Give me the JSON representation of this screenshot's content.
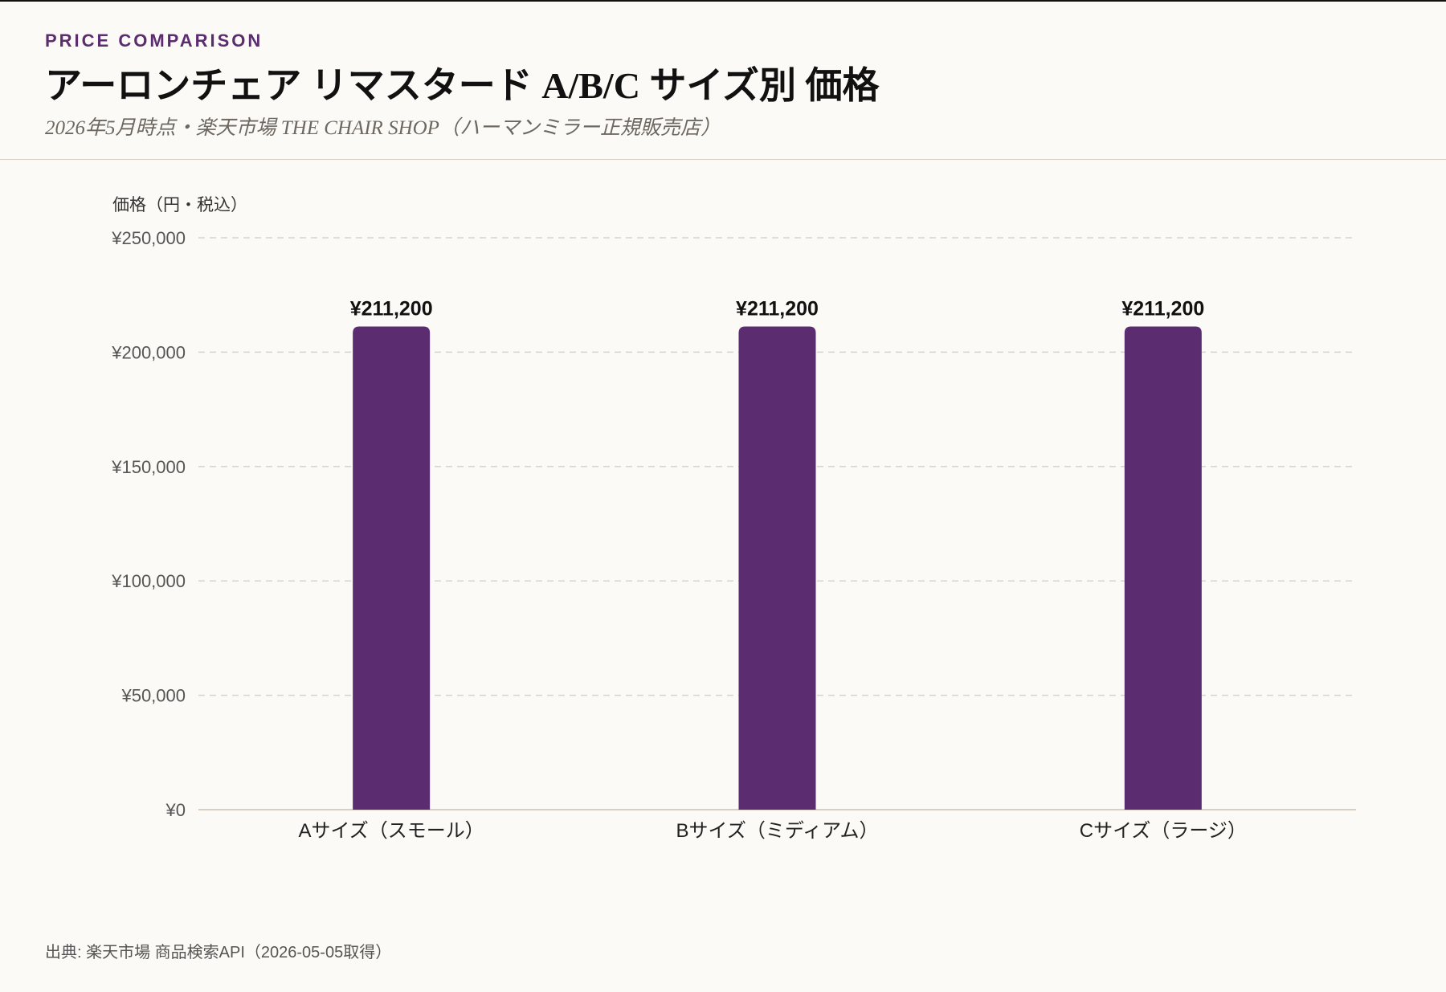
{
  "colors": {
    "accent": "#5b2c6f",
    "background": "#fbfaf6",
    "grid": "#d9d3ca",
    "axis": "#d8cfc2",
    "tick_text": "#555555",
    "title_text": "#111111"
  },
  "header": {
    "eyebrow": "PRICE COMPARISON",
    "title": "アーロンチェア リマスタード A/B/C サイズ別 価格",
    "subtitle": "2026年5月時点・楽天市場 THE CHAIR SHOP（ハーマンミラー正規販売店）"
  },
  "footer": {
    "source": "出典: 楽天市場 商品検索API（2026-05-05取得）"
  },
  "chart_data": {
    "type": "bar",
    "title": "アーロンチェア リマスタード A/B/C サイズ別 価格",
    "ylabel": "価格（円・税込）",
    "xlabel": "",
    "categories": [
      "Aサイズ（スモール）",
      "Bサイズ（ミディアム）",
      "Cサイズ（ラージ）"
    ],
    "values": [
      211200,
      211200,
      211200
    ],
    "value_labels": [
      "¥211,200",
      "¥211,200",
      "¥211,200"
    ],
    "ylim": [
      0,
      250000
    ],
    "yticks": [
      0,
      50000,
      100000,
      150000,
      200000,
      250000
    ],
    "ytick_labels": [
      "¥0",
      "¥50,000",
      "¥100,000",
      "¥150,000",
      "¥200,000",
      "¥250,000"
    ],
    "grid": true,
    "grid_style": "dashed"
  }
}
